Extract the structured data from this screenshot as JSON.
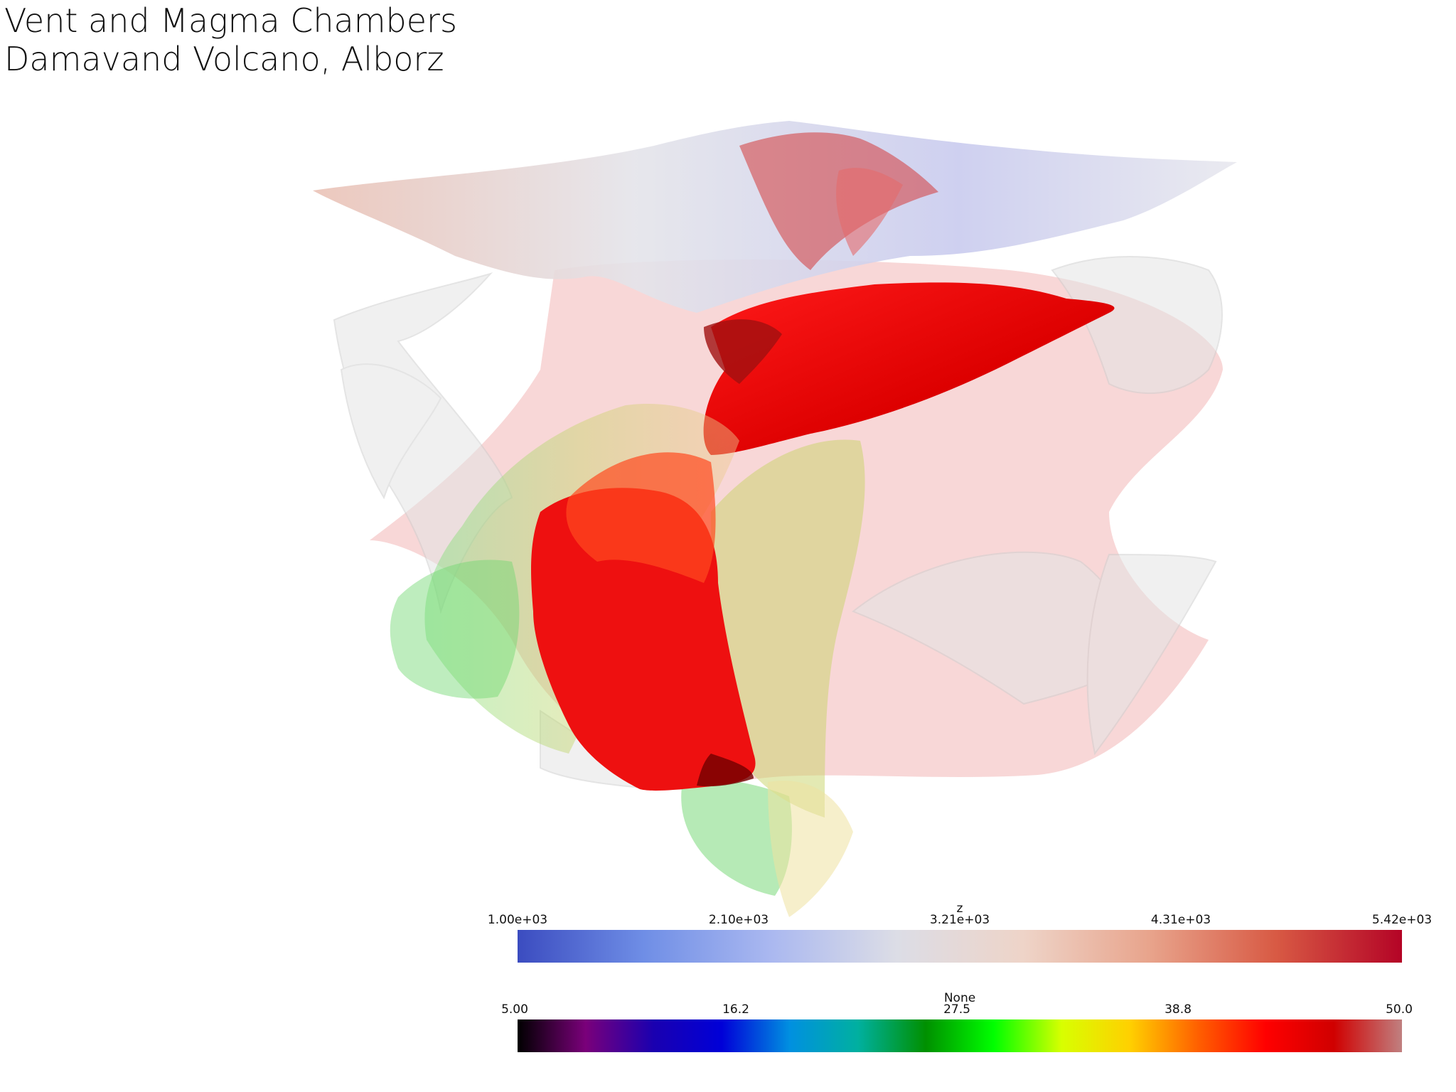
{
  "title": {
    "line1": "Vent and Magma Chambers",
    "line2": "Damavand Volcano, Alborz"
  },
  "colorbar_z": {
    "title": "z",
    "ticks": [
      "1.00e+03",
      "2.10e+03",
      "3.21e+03",
      "4.31e+03",
      "5.42e+03"
    ],
    "colors": [
      "#3b4cc0",
      "#6f8ee6",
      "#aab8f0",
      "#dcdde6",
      "#eed4c8",
      "#e8a48c",
      "#d85a44",
      "#b40426"
    ]
  },
  "colorbar_none": {
    "title": "None",
    "ticks": [
      "5.00",
      "16.2",
      "27.5",
      "38.8",
      "50.0"
    ],
    "colors": [
      "#000000",
      "#7a007a",
      "#1a00b0",
      "#0000d8",
      "#0090e0",
      "#00b0a0",
      "#009000",
      "#00ff00",
      "#d8ff00",
      "#ffd000",
      "#ff6000",
      "#ff0000",
      "#d00000",
      "#c08080"
    ]
  }
}
